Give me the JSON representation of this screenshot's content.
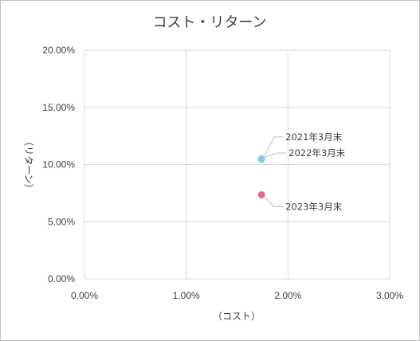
{
  "chart_data": {
    "type": "scatter",
    "title": "コスト・リターン",
    "xlabel": "（コスト）",
    "ylabel": "（リターン）",
    "xlim": [
      0,
      3
    ],
    "ylim": [
      0,
      20
    ],
    "x_ticks": [
      "0.00%",
      "1.00%",
      "2.00%",
      "3.00%"
    ],
    "y_ticks": [
      "0.00%",
      "5.00%",
      "10.00%",
      "15.00%",
      "20.00%"
    ],
    "grid": true,
    "series": [
      {
        "label": "2021年3月末",
        "x": 1.74,
        "y": 10.6,
        "color": "#e6e6e6"
      },
      {
        "label": "2022年3月末",
        "x": 1.74,
        "y": 10.45,
        "color": "#7ecbe4"
      },
      {
        "label": "2023年3月末",
        "x": 1.74,
        "y": 7.35,
        "color": "#e56a86"
      }
    ]
  }
}
